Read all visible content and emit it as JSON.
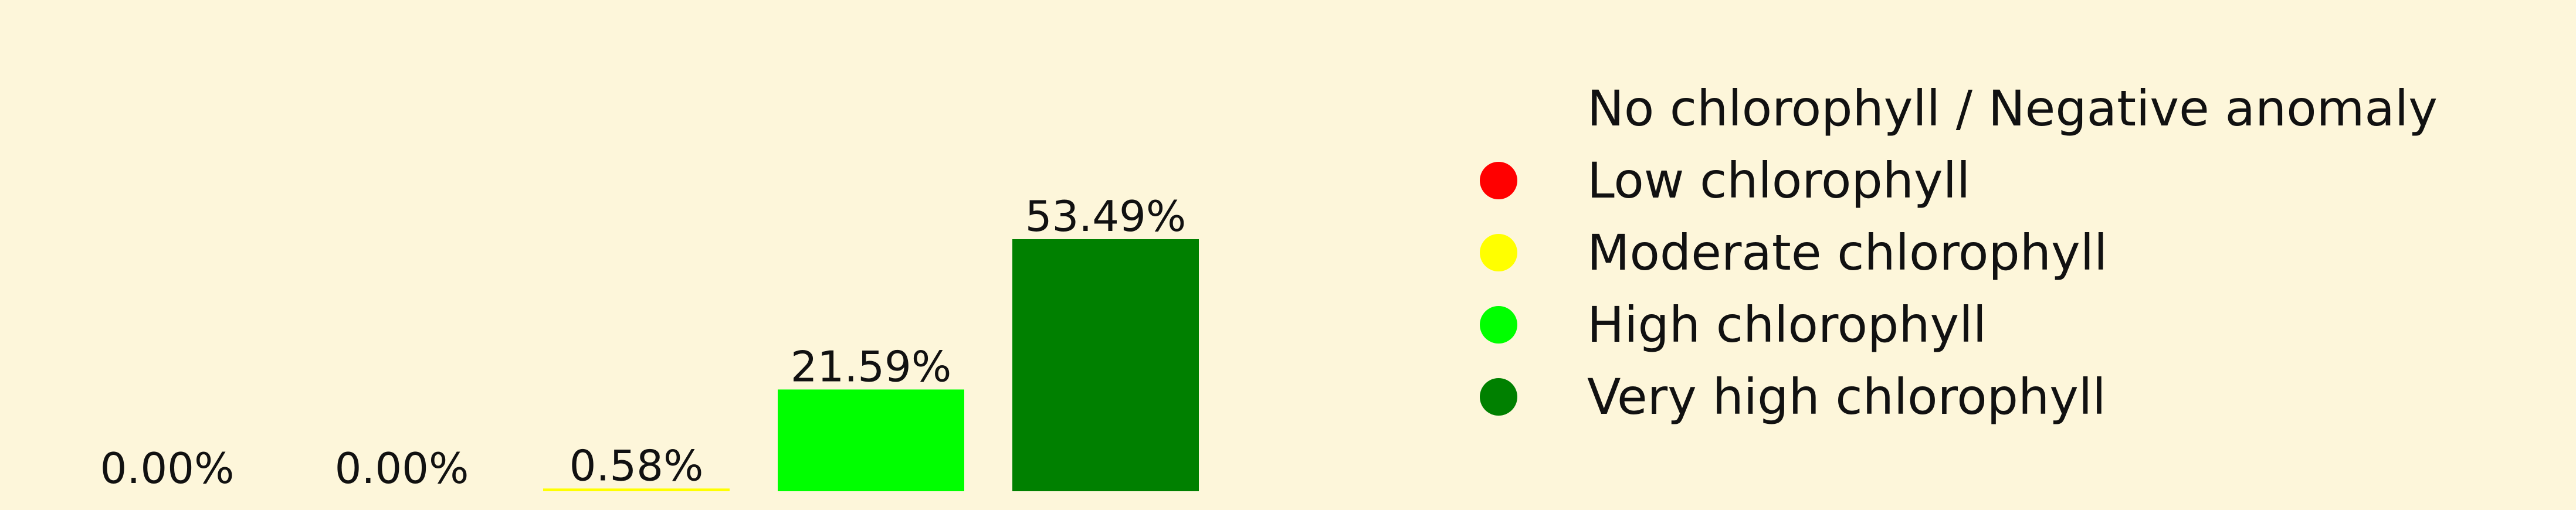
{
  "background_color": "#fdf6da",
  "chart_data": {
    "type": "bar",
    "categories": [
      "No chlorophyll / Negative anomaly",
      "Low chlorophyll",
      "Moderate chlorophyll",
      "High chlorophyll",
      "Very high chlorophyll"
    ],
    "values": [
      0.0,
      0.0,
      0.58,
      21.59,
      53.49
    ],
    "value_labels": [
      "0.00%",
      "0.00%",
      "0.58%",
      "21.59%",
      "53.49%"
    ],
    "unit": "%",
    "colors": [
      "#fdf6da",
      "#ff0000",
      "#ffff00",
      "#00ff00",
      "#008000"
    ],
    "ylim": [
      0,
      53.49
    ],
    "grid": false,
    "axes_visible": false,
    "legend": {
      "placement": "right",
      "entries": [
        {
          "label": "No chlorophyll / Negative anomaly",
          "color": "#fdf6da"
        },
        {
          "label": "Low chlorophyll",
          "color": "#ff0000"
        },
        {
          "label": "Moderate chlorophyll",
          "color": "#ffff00"
        },
        {
          "label": "High chlorophyll",
          "color": "#00ff00"
        },
        {
          "label": "Very high chlorophyll",
          "color": "#008000"
        }
      ]
    }
  }
}
